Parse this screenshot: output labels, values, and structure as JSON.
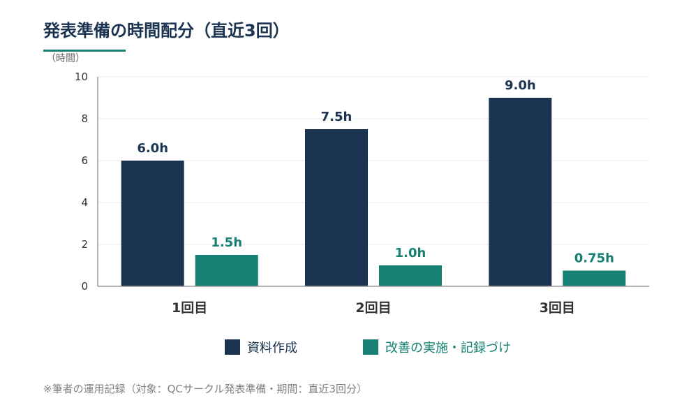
{
  "colors": {
    "primary": "#1a3350",
    "secondary": "#168073",
    "axis": "#999999",
    "grid": "#e8e8e8",
    "tick_text": "#333333",
    "footnote_text": "#808080",
    "accent_underline": "#168073"
  },
  "chart_data": {
    "type": "bar",
    "title": "発表準備の時間配分（直近3回）",
    "ylabel": "（時間）",
    "xlabel": "",
    "ylim": [
      0,
      10
    ],
    "yticks": [
      0,
      2,
      4,
      6,
      8,
      10
    ],
    "grid": true,
    "legend_position": "bottom-center",
    "categories": [
      "1回目",
      "2回目",
      "3回目"
    ],
    "series": [
      {
        "name": "資料作成",
        "color": "#1a3350",
        "values": [
          6.0,
          7.5,
          9.0
        ],
        "labels": [
          "6.0h",
          "7.5h",
          "9.0h"
        ]
      },
      {
        "name": "改善の実施・記録づけ",
        "color": "#168073",
        "values": [
          1.5,
          1.0,
          0.75
        ],
        "labels": [
          "1.5h",
          "1.0h",
          "0.75h"
        ]
      }
    ],
    "footnote": "※筆者の運用記録（対象：QCサークル発表準備・期間：直近3回分）"
  }
}
